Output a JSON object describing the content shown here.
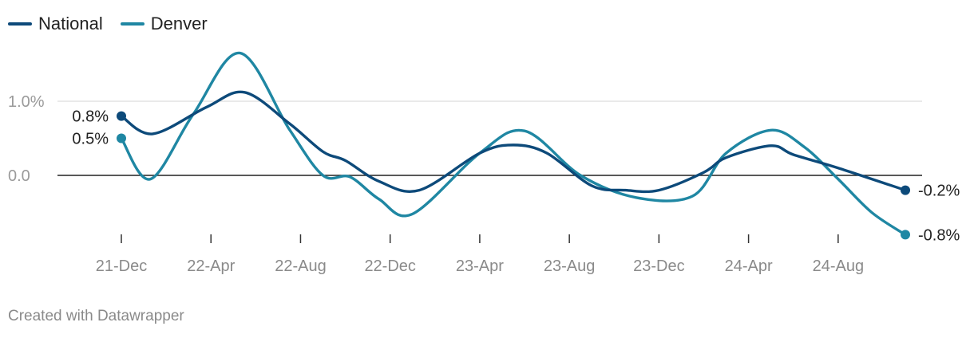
{
  "legend": {
    "national": "National",
    "denver": "Denver"
  },
  "footer": "Created with Datawrapper",
  "colors": {
    "national": "#0d4a7a",
    "denver": "#1f87a3",
    "grid": "#dddddd",
    "baseline": "#222222",
    "axis_text": "#8a8a8a"
  },
  "chart_data": {
    "type": "line",
    "title": "",
    "xlabel": "",
    "ylabel": "",
    "ylim": [
      -0.8,
      1.4
    ],
    "yticks": [
      {
        "value": 1.0,
        "label": "1.0%"
      },
      {
        "value": 0.0,
        "label": "0.0"
      }
    ],
    "xticks": [
      {
        "label": "21-Dec",
        "t": 0
      },
      {
        "label": "22-Apr",
        "t": 4
      },
      {
        "label": "22-Aug",
        "t": 8
      },
      {
        "label": "22-Dec",
        "t": 12
      },
      {
        "label": "23-Apr",
        "t": 16
      },
      {
        "label": "23-Aug",
        "t": 20
      },
      {
        "label": "23-Dec",
        "t": 24
      },
      {
        "label": "24-Apr",
        "t": 28
      },
      {
        "label": "24-Aug",
        "t": 32
      }
    ],
    "grid": true,
    "legend_position": "top-left",
    "series": [
      {
        "name": "National",
        "key": "national",
        "points": [
          {
            "t": 0,
            "v": 0.8
          },
          {
            "t": 1.4,
            "v": 0.56
          },
          {
            "t": 3.8,
            "v": 0.92
          },
          {
            "t": 5.5,
            "v": 1.12
          },
          {
            "t": 7.5,
            "v": 0.7
          },
          {
            "t": 9.0,
            "v": 0.32
          },
          {
            "t": 10.0,
            "v": 0.2
          },
          {
            "t": 11.5,
            "v": -0.08
          },
          {
            "t": 13.3,
            "v": -0.2
          },
          {
            "t": 16.0,
            "v": 0.3
          },
          {
            "t": 17.5,
            "v": 0.41
          },
          {
            "t": 19.0,
            "v": 0.3
          },
          {
            "t": 21.0,
            "v": -0.14
          },
          {
            "t": 22.5,
            "v": -0.2
          },
          {
            "t": 24.0,
            "v": -0.2
          },
          {
            "t": 26.0,
            "v": 0.04
          },
          {
            "t": 27.0,
            "v": 0.24
          },
          {
            "t": 29.0,
            "v": 0.4
          },
          {
            "t": 30.0,
            "v": 0.28
          },
          {
            "t": 32.0,
            "v": 0.1
          },
          {
            "t": 35.0,
            "v": -0.2
          }
        ],
        "end_label": "-0.2%",
        "start_label": "0.8%"
      },
      {
        "name": "Denver",
        "key": "denver",
        "points": [
          {
            "t": 0,
            "v": 0.5
          },
          {
            "t": 1.3,
            "v": -0.05
          },
          {
            "t": 3.2,
            "v": 0.82
          },
          {
            "t": 5.3,
            "v": 1.65
          },
          {
            "t": 7.5,
            "v": 0.62
          },
          {
            "t": 9.0,
            "v": 0.0
          },
          {
            "t": 10.2,
            "v": -0.02
          },
          {
            "t": 11.5,
            "v": -0.32
          },
          {
            "t": 13.0,
            "v": -0.52
          },
          {
            "t": 16.0,
            "v": 0.3
          },
          {
            "t": 18.0,
            "v": 0.6
          },
          {
            "t": 20.5,
            "v": 0.0
          },
          {
            "t": 23.0,
            "v": -0.3
          },
          {
            "t": 25.5,
            "v": -0.28
          },
          {
            "t": 27.0,
            "v": 0.3
          },
          {
            "t": 29.0,
            "v": 0.61
          },
          {
            "t": 30.5,
            "v": 0.38
          },
          {
            "t": 32.0,
            "v": -0.05
          },
          {
            "t": 33.5,
            "v": -0.5
          },
          {
            "t": 35.0,
            "v": -0.8
          }
        ],
        "end_label": "-0.8%",
        "start_label": "0.5%"
      }
    ]
  }
}
